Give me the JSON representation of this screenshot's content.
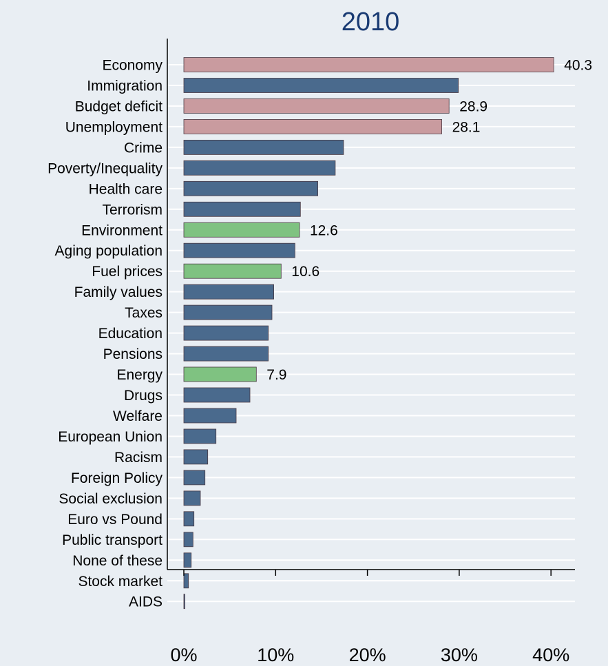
{
  "chart_data": {
    "type": "bar",
    "orientation": "horizontal",
    "title": "2010",
    "xlabel": "",
    "ylabel": "",
    "xlim": [
      0,
      42
    ],
    "x_ticks": [
      0,
      10,
      20,
      30,
      40
    ],
    "x_tick_labels": [
      "0%",
      "10%",
      "20%",
      "30%",
      "40%"
    ],
    "grid": true,
    "colors": {
      "economic": "#c99b9f",
      "energy_environment": "#7fc281",
      "other": "#4a6a8d",
      "title": "#1a3b73",
      "background": "#e9eef3"
    },
    "categories": [
      "Economy",
      "Immigration",
      "Budget deficit",
      "Unemployment",
      "Crime",
      "Poverty/Inequality",
      "Health care",
      "Terrorism",
      "Environment",
      "Aging population",
      "Fuel prices",
      "Family values",
      "Taxes",
      "Education",
      "Pensions",
      "Energy",
      "Drugs",
      "Welfare",
      "European Union",
      "Racism",
      "Foreign Policy",
      "Social exclusion",
      "Euro vs Pound",
      "Public transport",
      "None of these",
      "Stock market",
      "AIDS"
    ],
    "values": [
      40.3,
      29.9,
      28.9,
      28.1,
      17.4,
      16.5,
      14.6,
      12.7,
      12.6,
      12.1,
      10.6,
      9.8,
      9.6,
      9.2,
      9.2,
      7.9,
      7.2,
      5.7,
      3.5,
      2.6,
      2.3,
      1.8,
      1.1,
      1.0,
      0.8,
      0.5,
      0.1
    ],
    "bar_groups": [
      "economic",
      "other",
      "economic",
      "economic",
      "other",
      "other",
      "other",
      "other",
      "energy_environment",
      "other",
      "energy_environment",
      "other",
      "other",
      "other",
      "other",
      "energy_environment",
      "other",
      "other",
      "other",
      "other",
      "other",
      "other",
      "other",
      "other",
      "other",
      "other",
      "other"
    ],
    "data_labels": [
      "40.3",
      "",
      "28.9",
      "28.1",
      "",
      "",
      "",
      "",
      "12.6",
      "",
      "10.6",
      "",
      "",
      "",
      "",
      "7.9",
      "",
      "",
      "",
      "",
      "",
      "",
      "",
      "",
      "",
      "",
      ""
    ]
  }
}
